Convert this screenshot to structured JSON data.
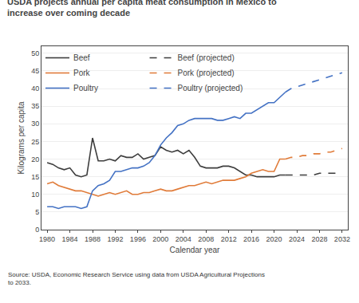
{
  "chart_data": {
    "type": "line",
    "title": "USDA projects annual per capita meat consumption in Mexico to\nincrease over coming decade",
    "xlabel": "Calendar year",
    "ylabel": "Kilograms per capita",
    "annotations": [
      "Source: USDA, Economic Research Service using data from USDA Agricultural Projections\nto 2033."
    ],
    "xlim": [
      1979,
      2033
    ],
    "xticks": [
      1980,
      1984,
      1988,
      1992,
      1996,
      2000,
      2004,
      2008,
      2012,
      2016,
      2020,
      2024,
      2028,
      2032
    ],
    "ylim": [
      0,
      52
    ],
    "yticks": [
      0,
      5,
      10,
      15,
      20,
      25,
      30,
      35,
      40,
      45,
      50
    ],
    "grid": "y",
    "legend": "upper left",
    "series": [
      {
        "name": "Beef",
        "color": "#3d3d3d",
        "line_style": "solid",
        "x": [
          1980,
          1981,
          1982,
          1983,
          1984,
          1985,
          1986,
          1987,
          1988,
          1989,
          1990,
          1991,
          1992,
          1993,
          1994,
          1995,
          1996,
          1997,
          1998,
          1999,
          2000,
          2001,
          2002,
          2003,
          2004,
          2005,
          2006,
          2007,
          2008,
          2009,
          2010,
          2011,
          2012,
          2013,
          2014,
          2015,
          2016,
          2017,
          2018,
          2019,
          2020,
          2021,
          2022
        ],
        "values": [
          19.0,
          18.5,
          17.5,
          17.0,
          17.5,
          15.5,
          15.0,
          15.5,
          26.0,
          19.5,
          19.5,
          20.0,
          19.5,
          21.0,
          20.5,
          20.5,
          21.5,
          20.0,
          20.5,
          21.0,
          23.5,
          22.5,
          22.0,
          22.5,
          21.5,
          22.5,
          20.5,
          18.0,
          17.5,
          17.5,
          17.5,
          18.0,
          18.0,
          17.5,
          16.5,
          15.5,
          15.5,
          15.0,
          15.0,
          15.0,
          15.0,
          15.5,
          15.5
        ]
      },
      {
        "name": "Beef (projected)",
        "color": "#3d3d3d",
        "line_style": "dashed",
        "x": [
          2022,
          2023,
          2024,
          2025,
          2026,
          2027,
          2028,
          2029,
          2030,
          2031,
          2032
        ],
        "values": [
          15.5,
          15.5,
          15.5,
          15.5,
          15.5,
          15.5,
          16.0,
          16.0,
          16.0,
          16.0,
          16.0
        ]
      },
      {
        "name": "Pork",
        "color": "#e07b39",
        "line_style": "solid",
        "x": [
          1980,
          1981,
          1982,
          1983,
          1984,
          1985,
          1986,
          1987,
          1988,
          1989,
          1990,
          1991,
          1992,
          1993,
          1994,
          1995,
          1996,
          1997,
          1998,
          1999,
          2000,
          2001,
          2002,
          2003,
          2004,
          2005,
          2006,
          2007,
          2008,
          2009,
          2010,
          2011,
          2012,
          2013,
          2014,
          2015,
          2016,
          2017,
          2018,
          2019,
          2020,
          2021,
          2022
        ],
        "values": [
          13.0,
          13.5,
          12.5,
          12.0,
          11.5,
          11.0,
          11.0,
          10.5,
          10.0,
          9.5,
          10.0,
          10.5,
          10.0,
          10.5,
          11.0,
          10.0,
          10.0,
          10.5,
          10.5,
          11.0,
          11.5,
          11.0,
          11.0,
          11.5,
          12.0,
          12.5,
          12.5,
          13.0,
          13.5,
          13.0,
          13.5,
          14.0,
          14.0,
          14.0,
          14.5,
          15.0,
          16.0,
          16.5,
          17.0,
          16.5,
          16.5,
          20.0,
          20.0
        ]
      },
      {
        "name": "Pork (projected)",
        "color": "#e07b39",
        "line_style": "dashed",
        "x": [
          2022,
          2023,
          2024,
          2025,
          2026,
          2027,
          2028,
          2029,
          2030,
          2031,
          2032
        ],
        "values": [
          20.0,
          20.5,
          20.5,
          21.0,
          21.0,
          21.5,
          21.5,
          22.0,
          22.0,
          22.5,
          23.0
        ]
      },
      {
        "name": "Poultry",
        "color": "#4472c4",
        "line_style": "solid",
        "x": [
          1980,
          1981,
          1982,
          1983,
          1984,
          1985,
          1986,
          1987,
          1988,
          1989,
          1990,
          1991,
          1992,
          1993,
          1994,
          1995,
          1996,
          1997,
          1998,
          1999,
          2000,
          2001,
          2002,
          2003,
          2004,
          2005,
          2006,
          2007,
          2008,
          2009,
          2010,
          2011,
          2012,
          2013,
          2014,
          2015,
          2016,
          2017,
          2018,
          2019,
          2020,
          2021,
          2022
        ],
        "values": [
          6.5,
          6.5,
          6.0,
          6.5,
          6.5,
          6.5,
          6.0,
          6.5,
          11.0,
          12.5,
          13.0,
          14.0,
          16.5,
          16.5,
          17.0,
          17.5,
          17.5,
          18.0,
          19.0,
          21.0,
          24.0,
          26.0,
          27.5,
          29.5,
          30.0,
          31.0,
          31.5,
          31.5,
          31.5,
          31.5,
          31.0,
          31.0,
          31.5,
          32.0,
          31.5,
          33.0,
          33.0,
          34.0,
          35.0,
          36.0,
          36.0,
          37.5,
          39.0
        ]
      },
      {
        "name": "Poultry (projected)",
        "color": "#4472c4",
        "line_style": "dashed",
        "x": [
          2022,
          2023,
          2024,
          2025,
          2026,
          2027,
          2028,
          2029,
          2030,
          2031,
          2032
        ],
        "values": [
          39.0,
          40.0,
          40.5,
          41.0,
          41.5,
          42.0,
          42.5,
          43.0,
          43.5,
          44.0,
          44.5
        ]
      }
    ]
  }
}
